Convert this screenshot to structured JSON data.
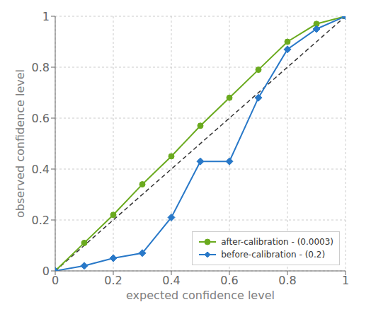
{
  "chart_data": {
    "type": "line",
    "xlabel": "expected confidence level",
    "ylabel": "observed confidence level",
    "xlim": [
      0,
      1.0
    ],
    "ylim": [
      0,
      1.0
    ],
    "xticks": [
      0,
      0.2,
      0.4,
      0.6,
      0.8,
      1
    ],
    "yticks": [
      0,
      0.2,
      0.4,
      0.6,
      0.8,
      1.0
    ],
    "grid": true,
    "legend": "lower right",
    "series": [
      {
        "color": "#333333",
        "line_style": "dashed",
        "x": [
          0.0,
          1.0
        ],
        "values": [
          0.0,
          1.0
        ]
      },
      {
        "name": "after-calibration - (0.0003)",
        "color": "#6aaa1e",
        "marker": "circle",
        "line_style": "solid",
        "x": [
          0.0,
          0.1,
          0.2,
          0.3,
          0.4,
          0.5,
          0.6,
          0.7,
          0.8,
          0.9,
          1.0
        ],
        "values": [
          0.0,
          0.11,
          0.22,
          0.34,
          0.45,
          0.57,
          0.68,
          0.79,
          0.9,
          0.97,
          1.0
        ]
      },
      {
        "name": "before-calibration - (0.2)",
        "color": "#2878c8",
        "marker": "diamond",
        "line_style": "solid",
        "x": [
          0.0,
          0.1,
          0.2,
          0.3,
          0.4,
          0.5,
          0.6,
          0.7,
          0.8,
          0.9,
          1.0
        ],
        "values": [
          0.0,
          0.02,
          0.05,
          0.07,
          0.21,
          0.43,
          0.43,
          0.68,
          0.87,
          0.95,
          1.0
        ]
      }
    ]
  }
}
